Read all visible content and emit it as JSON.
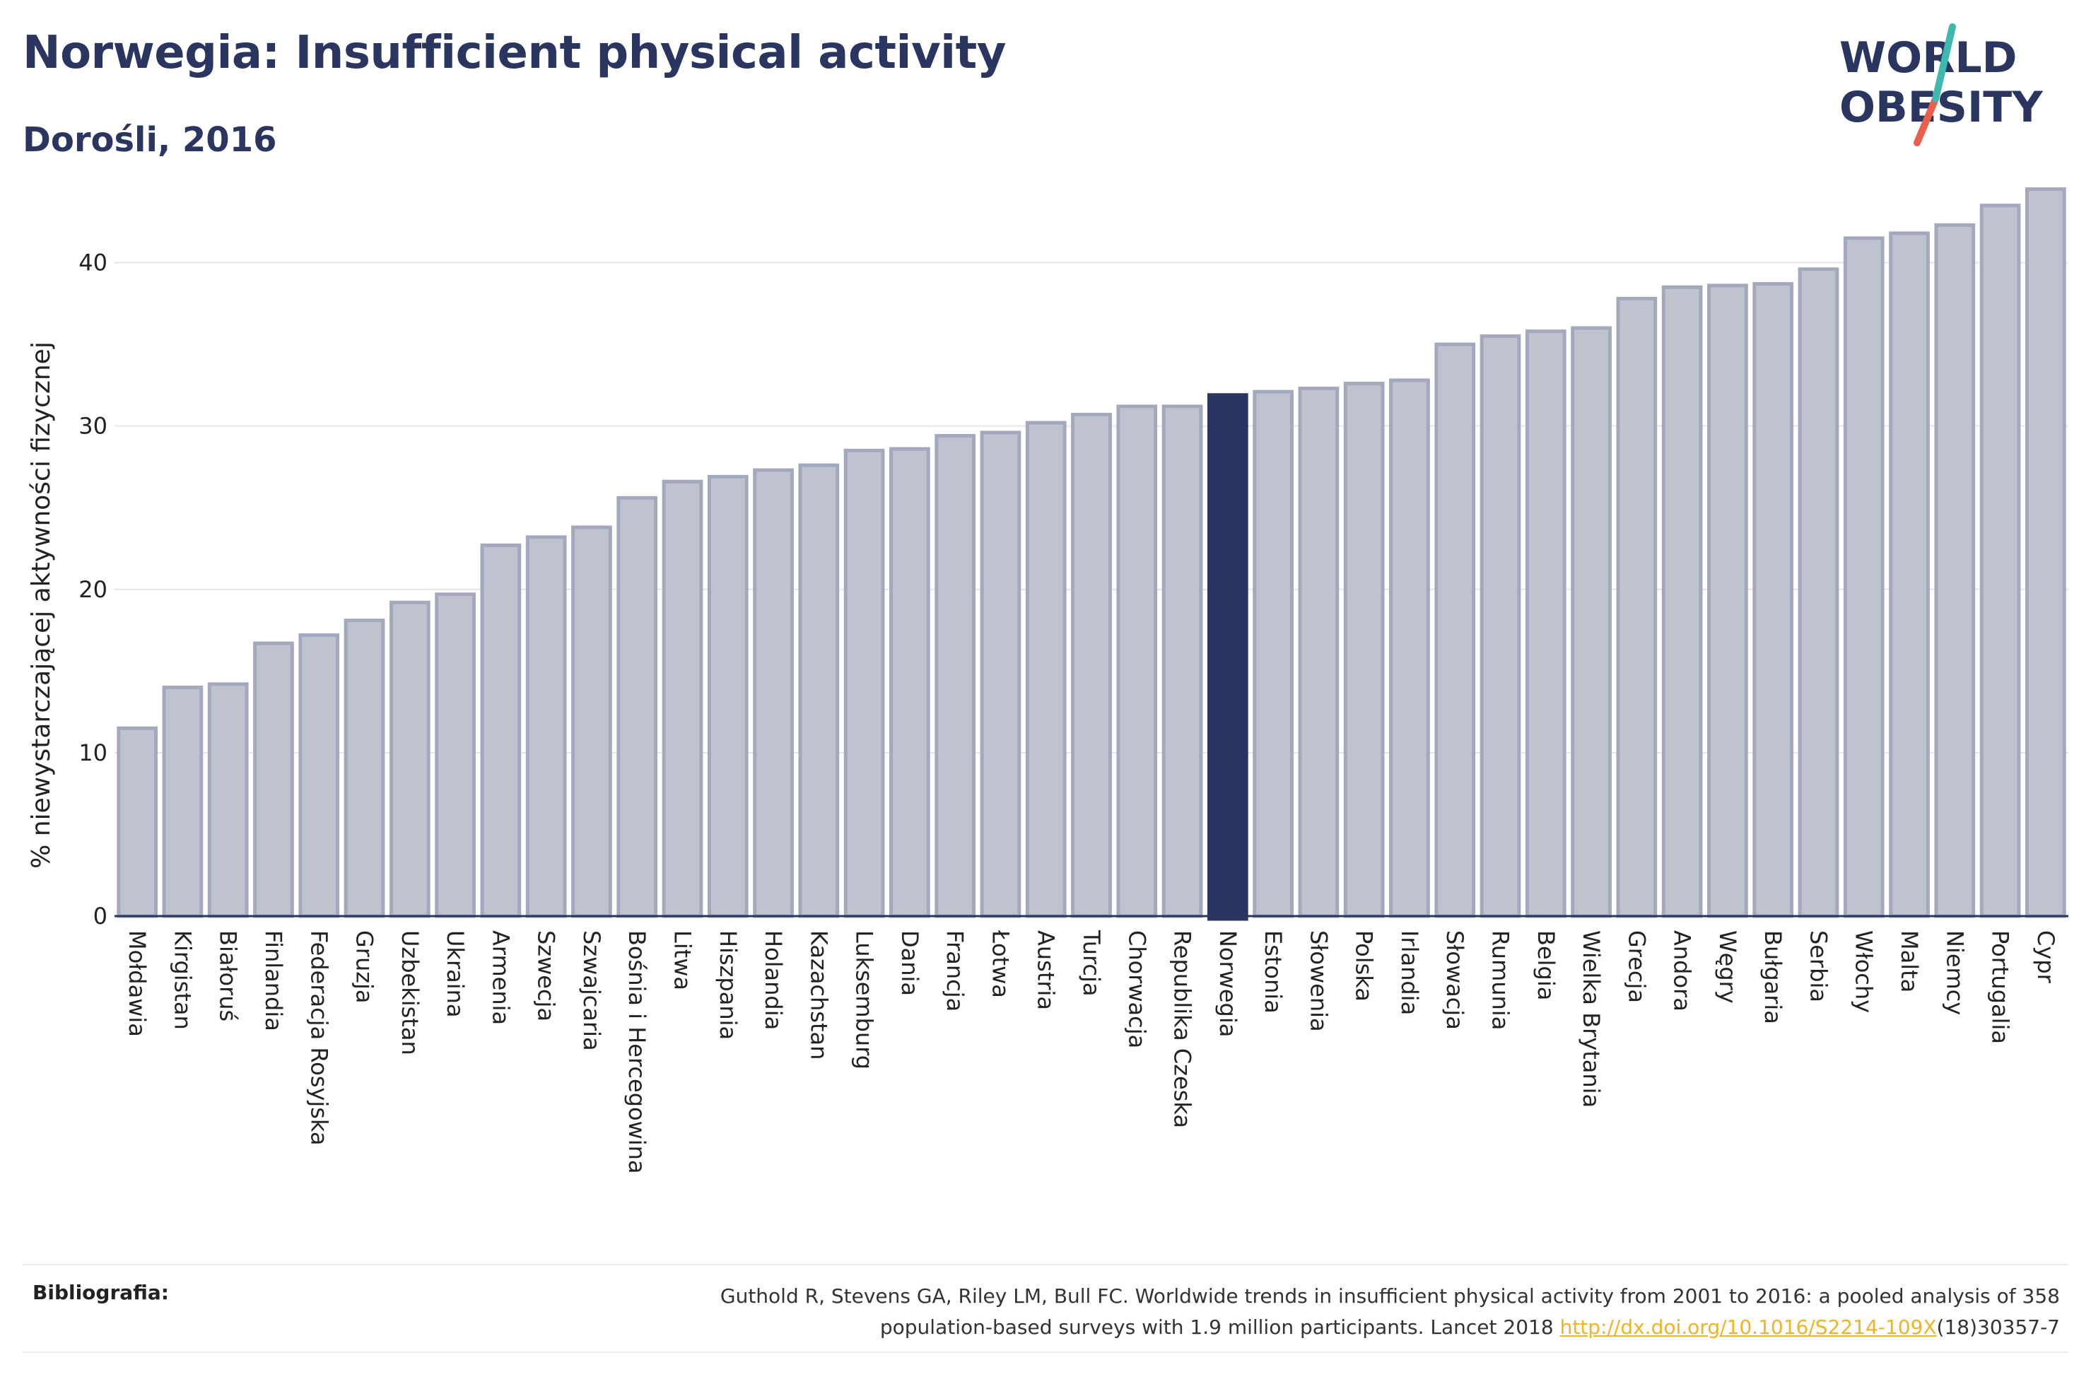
{
  "header": {
    "title": "Norwegia: Insufficient physical activity",
    "subtitle": "Dorośli, 2016"
  },
  "logo": {
    "line1": "WORLD",
    "line2": "OBESITY",
    "text_color": "#2a3560",
    "slash_colors": [
      "#3fb8af",
      "#e8604c"
    ]
  },
  "chart_data": {
    "type": "bar",
    "ylabel": "% niewystarczającej aktywności fizycznej",
    "xlabel": "",
    "ylim": [
      0,
      45
    ],
    "yticks": [
      0,
      10,
      20,
      30,
      40
    ],
    "grid": true,
    "categories": [
      "Mołdawia",
      "Kirgistan",
      "Białoruś",
      "Finlandia",
      "Federacja Rosyjska",
      "Gruzja",
      "Uzbekistan",
      "Ukraina",
      "Armenia",
      "Szwecja",
      "Szwajcaria",
      "Bośnia i Hercegowina",
      "Litwa",
      "Hiszpania",
      "Holandia",
      "Kazachstan",
      "Luksemburg",
      "Dania",
      "Francja",
      "Łotwa",
      "Austria",
      "Turcja",
      "Chorwacja",
      "Republika Czeska",
      "Norwegia",
      "Estonia",
      "Słowenia",
      "Polska",
      "Irlandia",
      "Słowacja",
      "Rumunia",
      "Belgia",
      "Wielka Brytania",
      "Grecja",
      "Andora",
      "Węgry",
      "Bułgaria",
      "Serbia",
      "Włochy",
      "Malta",
      "Niemcy",
      "Portugalia",
      "Cypr"
    ],
    "values": [
      11.5,
      14.0,
      14.2,
      16.7,
      17.2,
      18.1,
      19.2,
      19.7,
      22.7,
      23.2,
      23.8,
      25.6,
      26.6,
      26.9,
      27.3,
      27.6,
      28.5,
      28.6,
      29.4,
      29.6,
      30.2,
      30.7,
      31.2,
      31.2,
      31.9,
      32.1,
      32.3,
      32.6,
      32.8,
      35.0,
      35.5,
      35.8,
      36.0,
      37.8,
      38.5,
      38.6,
      38.7,
      39.6,
      41.5,
      41.8,
      42.3,
      43.5,
      44.5
    ],
    "highlight": "Norwegia",
    "colors": {
      "bar": "#bfc3d0",
      "bar_border": "#a3a8bd",
      "highlight": "#2a3560",
      "axis": "#2a3560",
      "grid": "#e6e6e6"
    }
  },
  "footer": {
    "label": "Bibliografia:",
    "line1": "Guthold R, Stevens GA, Riley LM, Bull FC. Worldwide trends in insufficient physical activity from 2001 to 2016: a pooled analysis of 358",
    "line2_before": "population-based surveys with 1.9 million participants. Lancet 2018 ",
    "link": "http://dx.doi.org/10.1016/S2214-109X",
    "line2_after": "(18)30357-7"
  }
}
